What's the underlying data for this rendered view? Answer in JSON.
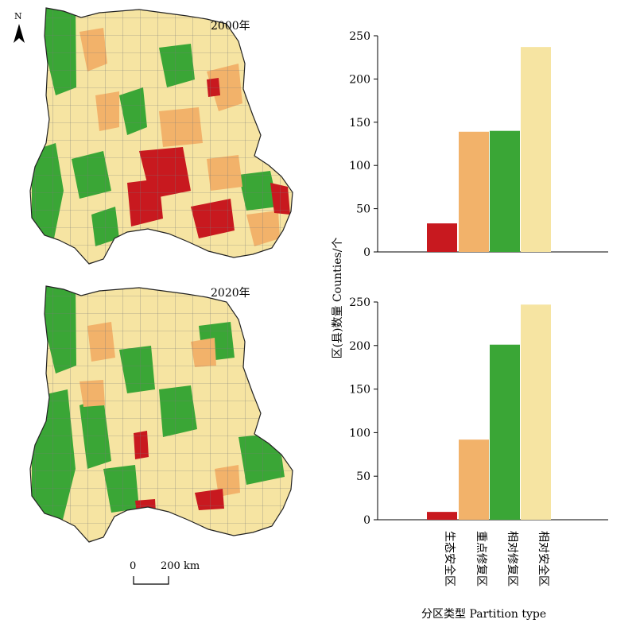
{
  "maps": {
    "top_year": "2000年",
    "bottom_year": "2020年",
    "north_label": "N",
    "scale_zero": "0",
    "scale_end": "200 km"
  },
  "colors": {
    "ecological_safety": "#c8191f",
    "key_restoration": "#f2b26a",
    "relative_restoration": "#3aa636",
    "relative_safety": "#f6e4a2",
    "boundary": "#7a7a7a"
  },
  "chart_data": [
    {
      "type": "bar",
      "panel": "2000年",
      "categories": [
        "生态安全区",
        "重点修复区",
        "相对修复区",
        "相对安全区"
      ],
      "values": [
        33,
        139,
        140,
        237
      ],
      "ylim": [
        0,
        250
      ],
      "yticks": [
        0,
        50,
        100,
        150,
        200,
        250
      ],
      "colors": [
        "#c8191f",
        "#f2b26a",
        "#3aa636",
        "#f6e4a2"
      ]
    },
    {
      "type": "bar",
      "panel": "2020年",
      "categories": [
        "生态安全区",
        "重点修复区",
        "相对修复区",
        "相对安全区"
      ],
      "values": [
        9,
        92,
        201,
        247
      ],
      "ylim": [
        0,
        250
      ],
      "yticks": [
        0,
        50,
        100,
        150,
        200,
        250
      ],
      "colors": [
        "#c8191f",
        "#f2b26a",
        "#3aa636",
        "#f6e4a2"
      ]
    }
  ],
  "axis": {
    "ylabel": "区(县)数量 Counties/个",
    "xlabel": "分区类型 Partition type"
  }
}
